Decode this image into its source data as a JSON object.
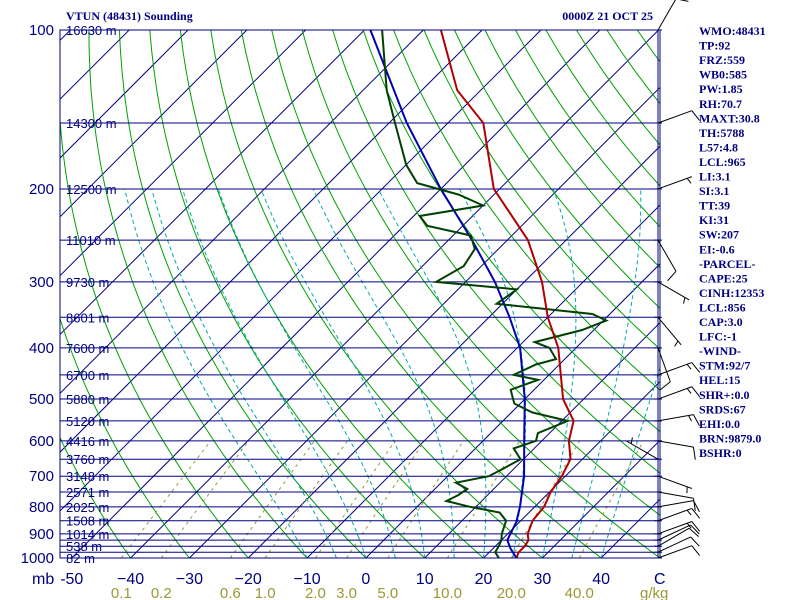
{
  "header": {
    "station_title": "VTUN (48431) Sounding",
    "time_label": "0000Z 21 OCT 25"
  },
  "indices": [
    "WMO:48431",
    "TP:92",
    "FRZ:559",
    "WB0:585",
    "PW:1.85",
    "RH:70.7",
    "MAXT:30.8",
    "TH:5788",
    "L57:4.8",
    "LCL:965",
    "LI:3.1",
    "SI:3.1",
    "TT:39",
    "KI:31",
    "SW:207",
    "EI:-0.6",
    "-PARCEL-",
    "CAPE:25",
    "CINH:12353",
    "LCL:856",
    "CAP:3.0",
    "LFC:-1",
    "-WIND-",
    "STM:92/7",
    "HEL:15",
    "SHR+:0.0",
    "SRDS:67",
    "EHI:0.0",
    "BRN:9879.0",
    "BSHR:0"
  ],
  "colors": {
    "isobar": "#000080",
    "isotherm": "#000080",
    "dry_adiabat": "#00a000",
    "moist_adiabat": "#00aaaa",
    "mixing_ratio": "#999933",
    "temperature": "#b00000",
    "dewpoint": "#004000",
    "parcel": "#0000b0",
    "wind_barb": "#000000"
  },
  "chart_data": {
    "type": "skew-t",
    "pressure_unit_label": "mb",
    "mixing_ratio_unit_label": "g/kg",
    "temp_ticks": [
      -50,
      -40,
      -30,
      -20,
      -10,
      0,
      10,
      20,
      30,
      40
    ],
    "temp_tick_labels": [
      "-50",
      "−40",
      "−30",
      "−20",
      "−10",
      "0",
      "10",
      "20",
      "30",
      "40"
    ],
    "temp_range_bottom": [
      -52,
      50
    ],
    "temp_end_label": "C",
    "pressure_range": [
      100,
      1000
    ],
    "pressure_tick_labels": [
      {
        "p": 100,
        "label": "100"
      },
      {
        "p": 200,
        "label": "200"
      },
      {
        "p": 300,
        "label": "300"
      },
      {
        "p": 400,
        "label": "400"
      },
      {
        "p": 500,
        "label": "500"
      },
      {
        "p": 600,
        "label": "600"
      },
      {
        "p": 700,
        "label": "700"
      },
      {
        "p": 800,
        "label": "800"
      },
      {
        "p": 900,
        "label": "900"
      },
      {
        "p": 1000,
        "label": "1000"
      }
    ],
    "isobar_pressures": [
      100,
      150,
      200,
      250,
      300,
      350,
      400,
      450,
      500,
      550,
      600,
      650,
      700,
      750,
      800,
      850,
      900,
      925,
      950,
      975
    ],
    "height_labels": [
      {
        "p": 100,
        "label": "16630 m"
      },
      {
        "p": 150,
        "label": "14300 m"
      },
      {
        "p": 200,
        "label": "12500 m"
      },
      {
        "p": 250,
        "label": "11010 m"
      },
      {
        "p": 300,
        "label": "9730 m"
      },
      {
        "p": 350,
        "label": "8601 m"
      },
      {
        "p": 400,
        "label": "7600 m"
      },
      {
        "p": 450,
        "label": "6700 m"
      },
      {
        "p": 500,
        "label": "5880 m"
      },
      {
        "p": 550,
        "label": "5120 m"
      },
      {
        "p": 600,
        "label": "4416 m"
      },
      {
        "p": 650,
        "label": "3760 m"
      },
      {
        "p": 700,
        "label": "3148 m"
      },
      {
        "p": 750,
        "label": "2571 m"
      },
      {
        "p": 800,
        "label": "2025 m"
      },
      {
        "p": 850,
        "label": "1508 m"
      },
      {
        "p": 900,
        "label": "1014 m"
      },
      {
        "p": 950,
        "label": "538 m"
      },
      {
        "p": 1000,
        "label": "82 m"
      }
    ],
    "mixing_ratio_lines": [
      {
        "w": 0.1,
        "label": "0.1"
      },
      {
        "w": 0.2,
        "label": "0.2"
      },
      {
        "w": 0.6,
        "label": "0.6"
      },
      {
        "w": 1.0,
        "label": "1.0"
      },
      {
        "w": 2.0,
        "label": "2.0"
      },
      {
        "w": 3.0,
        "label": "3.0"
      },
      {
        "w": 5.0,
        "label": "5.0"
      },
      {
        "w": 10.0,
        "label": "10.0"
      },
      {
        "w": 20.0,
        "label": "20.0"
      },
      {
        "w": 40.0,
        "label": "40.0"
      }
    ],
    "temperature_profile": [
      [
        1000,
        25.6
      ],
      [
        975,
        25.0
      ],
      [
        950,
        25.0
      ],
      [
        925,
        24.6
      ],
      [
        900,
        23.4
      ],
      [
        850,
        22.0
      ],
      [
        800,
        21.6
      ],
      [
        750,
        20.2
      ],
      [
        700,
        19.4
      ],
      [
        650,
        18.0
      ],
      [
        600,
        14.6
      ],
      [
        550,
        12.0
      ],
      [
        500,
        6.5
      ],
      [
        450,
        2.0
      ],
      [
        400,
        -3.0
      ],
      [
        350,
        -10.0
      ],
      [
        300,
        -17.0
      ],
      [
        250,
        -26.5
      ],
      [
        200,
        -41.0
      ],
      [
        150,
        -54.0
      ],
      [
        130,
        -64.0
      ],
      [
        100,
        -77.0
      ]
    ],
    "dewpoint_profile": [
      [
        1000,
        22.6
      ],
      [
        975,
        21.0
      ],
      [
        950,
        20.6
      ],
      [
        925,
        20.0
      ],
      [
        900,
        19.0
      ],
      [
        850,
        17.5
      ],
      [
        820,
        15.0
      ],
      [
        800,
        9.0
      ],
      [
        780,
        4.0
      ],
      [
        760,
        5.0
      ],
      [
        740,
        5.5
      ],
      [
        720,
        2.5
      ],
      [
        700,
        7.0
      ],
      [
        680,
        8.0
      ],
      [
        650,
        9.5
      ],
      [
        620,
        6.5
      ],
      [
        600,
        9.0
      ],
      [
        580,
        8.0
      ],
      [
        550,
        11.0
      ],
      [
        530,
        3.5
      ],
      [
        510,
        -1.0
      ],
      [
        500,
        -2.0
      ],
      [
        480,
        -4.0
      ],
      [
        460,
        -1.0
      ],
      [
        450,
        -6.0
      ],
      [
        430,
        -4.0
      ],
      [
        420,
        -1.5
      ],
      [
        400,
        -4.5
      ],
      [
        390,
        -8.0
      ],
      [
        370,
        -2.0
      ],
      [
        355,
        0.5
      ],
      [
        345,
        -3.0
      ],
      [
        330,
        -21.0
      ],
      [
        310,
        -20.0
      ],
      [
        300,
        -35.0
      ],
      [
        280,
        -33.0
      ],
      [
        260,
        -34.0
      ],
      [
        245,
        -37.0
      ],
      [
        235,
        -46.0
      ],
      [
        225,
        -49.0
      ],
      [
        215,
        -40.0
      ],
      [
        205,
        -46.0
      ],
      [
        195,
        -55.0
      ],
      [
        180,
        -60.0
      ],
      [
        150,
        -69.0
      ],
      [
        130,
        -76.0
      ],
      [
        100,
        -87.0
      ]
    ],
    "parcel_profile": [
      [
        1000,
        25.6
      ],
      [
        960,
        23.0
      ],
      [
        925,
        21.0
      ],
      [
        856,
        19.5
      ],
      [
        800,
        17.5
      ],
      [
        700,
        13.0
      ],
      [
        600,
        7.0
      ],
      [
        500,
        0.0
      ],
      [
        400,
        -9.5
      ],
      [
        350,
        -16.5
      ],
      [
        300,
        -25.0
      ],
      [
        250,
        -36.0
      ],
      [
        200,
        -50.0
      ],
      [
        150,
        -67.0
      ],
      [
        100,
        -89.0
      ]
    ],
    "wind_profile_kt": [
      {
        "p": 1000,
        "dir": 70,
        "spd": 10
      },
      {
        "p": 975,
        "dir": 65,
        "spd": 10
      },
      {
        "p": 950,
        "dir": 60,
        "spd": 10
      },
      {
        "p": 925,
        "dir": 65,
        "spd": 10
      },
      {
        "p": 900,
        "dir": 70,
        "spd": 15
      },
      {
        "p": 850,
        "dir": 70,
        "spd": 15
      },
      {
        "p": 800,
        "dir": 80,
        "spd": 10
      },
      {
        "p": 750,
        "dir": 100,
        "spd": 10
      },
      {
        "p": 700,
        "dir": 110,
        "spd": 5
      },
      {
        "p": 650,
        "dir": 300,
        "spd": 5
      },
      {
        "p": 600,
        "dir": 100,
        "spd": 10
      },
      {
        "p": 550,
        "dir": 80,
        "spd": 15
      },
      {
        "p": 500,
        "dir": 70,
        "spd": 15
      },
      {
        "p": 450,
        "dir": 70,
        "spd": 15
      },
      {
        "p": 400,
        "dir": 160,
        "spd": 10
      },
      {
        "p": 350,
        "dir": 140,
        "spd": 5
      },
      {
        "p": 300,
        "dir": 120,
        "spd": 5
      },
      {
        "p": 250,
        "dir": 150,
        "spd": 10
      },
      {
        "p": 200,
        "dir": 70,
        "spd": 5
      },
      {
        "p": 150,
        "dir": 70,
        "spd": 10
      },
      {
        "p": 100,
        "dir": 30,
        "spd": 10
      }
    ]
  }
}
